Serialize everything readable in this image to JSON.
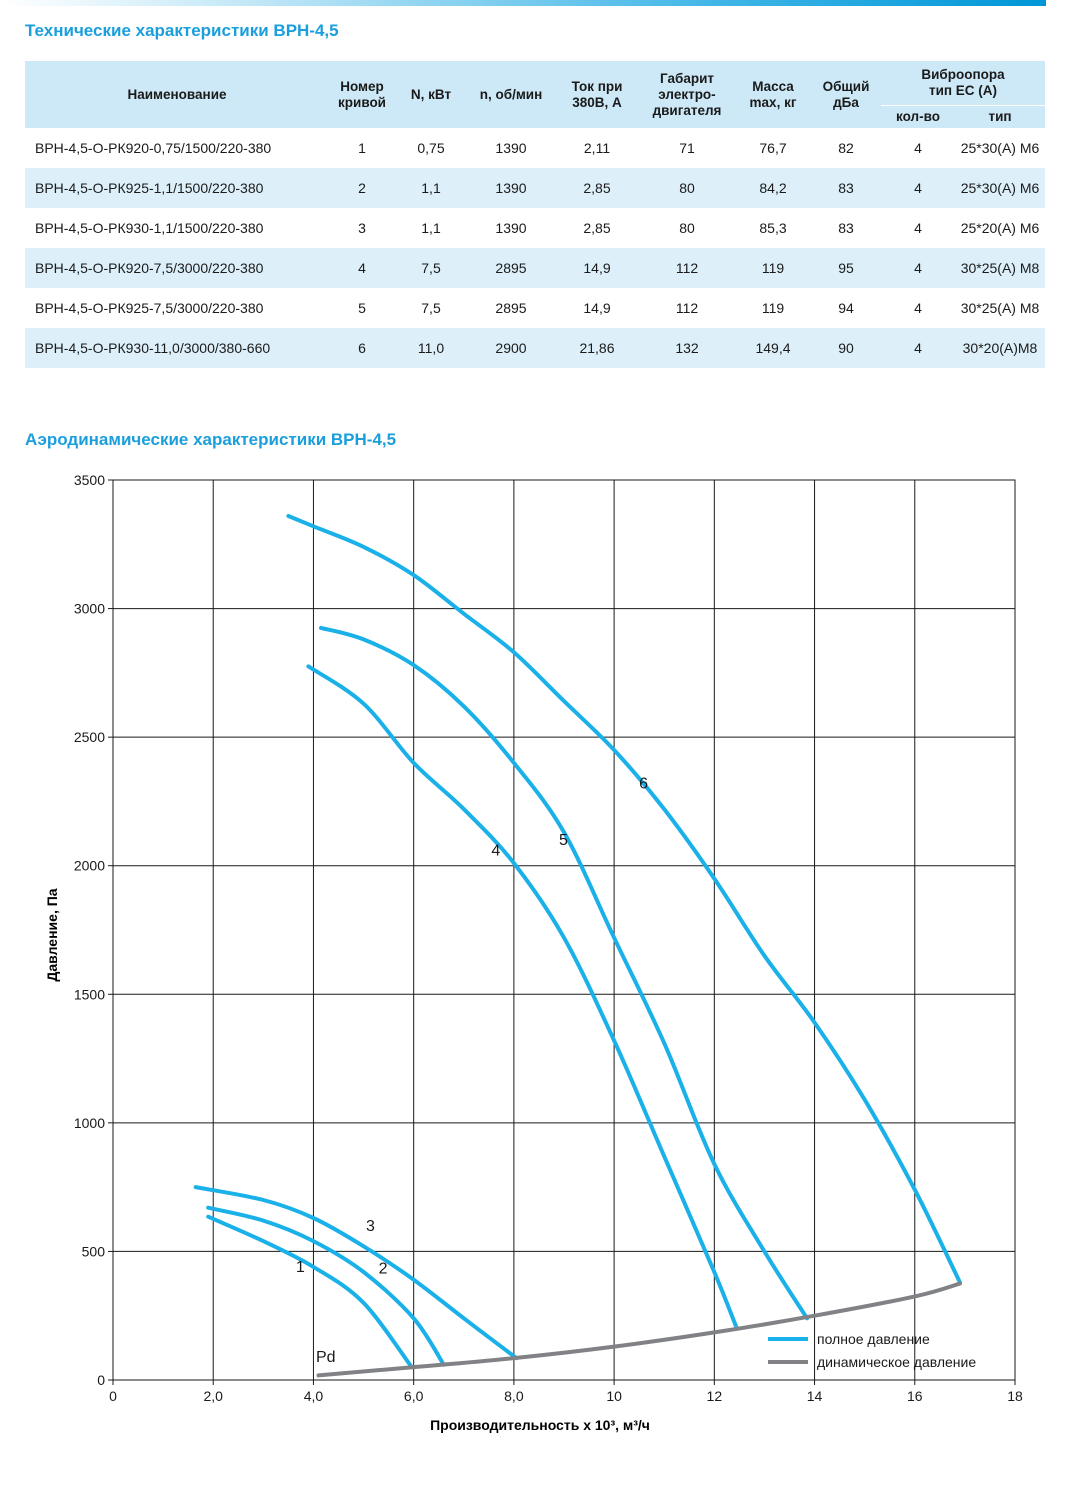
{
  "tech_title": "Технические характеристики ВРН-4,5",
  "aero_title": "Аэродинамические характеристики ВРН-4,5",
  "table": {
    "headers": {
      "name": "Наименование",
      "curve": "Номер\nкривой",
      "power": "N, кВт",
      "rpm": "n, об/мин",
      "current": "Ток при\n380В, А",
      "motor": "Габарит\nэлектро-\nдвигателя",
      "mass": "Масса\nmax, кг",
      "noise": "Общий\nдБа",
      "vibro": "Виброопора\nтип ЕС (А)",
      "vibro_qty": "кол-во",
      "vibro_type": "тип"
    },
    "rows": [
      [
        "ВРН-4,5-О-РК920-0,75/1500/220-380",
        "1",
        "0,75",
        "1390",
        "2,11",
        "71",
        "76,7",
        "82",
        "4",
        "25*30(А) М6"
      ],
      [
        "ВРН-4,5-О-РК925-1,1/1500/220-380",
        "2",
        "1,1",
        "1390",
        "2,85",
        "80",
        "84,2",
        "83",
        "4",
        "25*30(А) М6"
      ],
      [
        "ВРН-4,5-О-РК930-1,1/1500/220-380",
        "3",
        "1,1",
        "1390",
        "2,85",
        "80",
        "85,3",
        "83",
        "4",
        "25*20(А) М6"
      ],
      [
        "ВРН-4,5-О-РК920-7,5/3000/220-380",
        "4",
        "7,5",
        "2895",
        "14,9",
        "112",
        "119",
        "95",
        "4",
        "30*25(А) М8"
      ],
      [
        "ВРН-4,5-О-РК925-7,5/3000/220-380",
        "5",
        "7,5",
        "2895",
        "14,9",
        "112",
        "119",
        "94",
        "4",
        "30*25(А) М8"
      ],
      [
        "ВРН-4,5-О-РК930-11,0/3000/380-660",
        "6",
        "11,0",
        "2900",
        "21,86",
        "132",
        "149,4",
        "90",
        "4",
        "30*20(А)М8"
      ]
    ]
  },
  "chart_data": {
    "type": "line",
    "xlabel": "Производительность х 10³, м³/ч",
    "ylabel": "Давление, Па",
    "xlim": [
      0,
      18
    ],
    "ylim": [
      0,
      3500
    ],
    "x_ticks": [
      "0",
      "2,0",
      "4,0",
      "6,0",
      "8,0",
      "10",
      "12",
      "14",
      "16",
      "18"
    ],
    "y_ticks": [
      "0",
      "500",
      "1000",
      "1500",
      "2000",
      "2500",
      "3000",
      "3500"
    ],
    "grid": true,
    "legend_position": "bottom-right",
    "colors": {
      "full": "#1ab0e8",
      "dynamic": "#808285"
    },
    "legend": [
      {
        "label": "полное давление",
        "color": "#1ab0e8"
      },
      {
        "label": "динамическое давление",
        "color": "#808285"
      }
    ],
    "series": [
      {
        "name": "1",
        "kind": "full",
        "label_at": [
          3.65,
          420
        ],
        "points": [
          [
            1.9,
            635
          ],
          [
            3.0,
            540
          ],
          [
            4.0,
            440
          ],
          [
            5.0,
            300
          ],
          [
            5.96,
            50
          ]
        ]
      },
      {
        "name": "2",
        "kind": "full",
        "label_at": [
          5.3,
          415
        ],
        "points": [
          [
            1.9,
            670
          ],
          [
            3.0,
            620
          ],
          [
            4.0,
            540
          ],
          [
            5.0,
            420
          ],
          [
            6.0,
            240
          ],
          [
            6.6,
            60
          ]
        ]
      },
      {
        "name": "3",
        "kind": "full",
        "label_at": [
          5.05,
          580
        ],
        "points": [
          [
            1.65,
            750
          ],
          [
            3.0,
            700
          ],
          [
            4.0,
            630
          ],
          [
            5.0,
            520
          ],
          [
            6.0,
            390
          ],
          [
            7.0,
            240
          ],
          [
            8.05,
            85
          ]
        ]
      },
      {
        "name": "4",
        "kind": "full",
        "label_at": [
          7.55,
          2040
        ],
        "points": [
          [
            3.9,
            2775
          ],
          [
            5.0,
            2630
          ],
          [
            6.0,
            2400
          ],
          [
            7.0,
            2220
          ],
          [
            8.0,
            2010
          ],
          [
            9.0,
            1720
          ],
          [
            10.0,
            1320
          ],
          [
            11.0,
            870
          ],
          [
            12.0,
            420
          ],
          [
            12.45,
            200
          ]
        ]
      },
      {
        "name": "5",
        "kind": "full",
        "label_at": [
          8.9,
          2080
        ],
        "points": [
          [
            4.15,
            2925
          ],
          [
            5.0,
            2880
          ],
          [
            6.0,
            2780
          ],
          [
            7.0,
            2620
          ],
          [
            8.0,
            2400
          ],
          [
            9.0,
            2130
          ],
          [
            10.0,
            1720
          ],
          [
            11.0,
            1310
          ],
          [
            12.0,
            840
          ],
          [
            13.0,
            500
          ],
          [
            13.85,
            240
          ]
        ]
      },
      {
        "name": "6",
        "kind": "full",
        "label_at": [
          10.5,
          2300
        ],
        "points": [
          [
            3.5,
            3360
          ],
          [
            4.0,
            3320
          ],
          [
            5.0,
            3240
          ],
          [
            6.0,
            3130
          ],
          [
            7.0,
            2980
          ],
          [
            8.0,
            2830
          ],
          [
            9.0,
            2640
          ],
          [
            10.0,
            2450
          ],
          [
            11.0,
            2220
          ],
          [
            12.0,
            1950
          ],
          [
            13.0,
            1650
          ],
          [
            14.0,
            1390
          ],
          [
            15.0,
            1090
          ],
          [
            16.0,
            740
          ],
          [
            16.9,
            380
          ]
        ]
      },
      {
        "name": "Pd",
        "kind": "dynamic",
        "label_at": [
          4.05,
          70
        ],
        "points": [
          [
            4.1,
            18
          ],
          [
            6.0,
            50
          ],
          [
            8.0,
            85
          ],
          [
            10.0,
            130
          ],
          [
            12.0,
            185
          ],
          [
            14.0,
            250
          ],
          [
            16.0,
            325
          ],
          [
            16.9,
            375
          ]
        ]
      }
    ]
  }
}
